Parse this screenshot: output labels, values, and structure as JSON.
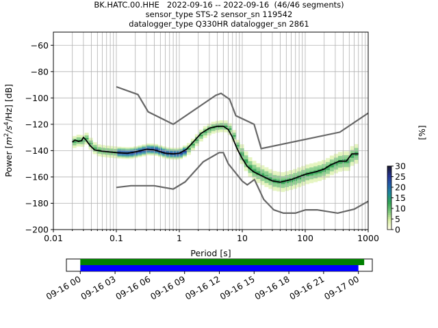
{
  "title_lines": [
    "BK.HATC.00.HHE   2022-09-16 -- 2022-09-16  (46/46 segments)",
    "sensor_type STS-2 sensor_sn 119542",
    "datalogger_type Q330HR datalogger_sn 2861"
  ],
  "chart_data": {
    "type": "heatmap",
    "xlabel": "Period [s]",
    "ylabel_parts": [
      "Power [",
      "m",
      "2",
      "/",
      "s",
      "4",
      "/Hz] [dB]"
    ],
    "xscale": "log",
    "xlim": [
      0.01,
      1000
    ],
    "ylim": [
      -200,
      -50
    ],
    "x_ticks": [
      0.01,
      0.1,
      1,
      10,
      100,
      1000
    ],
    "x_tick_labels": [
      "0.01",
      "0.1",
      "1",
      "10",
      "100",
      "1000"
    ],
    "y_ticks": [
      -200,
      -180,
      -160,
      -140,
      -120,
      -100,
      -80,
      -60
    ],
    "y_tick_labels": [
      "−200",
      "−180",
      "−160",
      "−140",
      "−120",
      "−100",
      "−80",
      "−60"
    ],
    "grid": true,
    "colorbar": {
      "label": "[%]",
      "range": [
        0,
        30
      ],
      "ticks": [
        0,
        5,
        10,
        15,
        20,
        25,
        30
      ],
      "tick_labels": [
        "0",
        "5",
        "10",
        "15",
        "20",
        "25",
        "30"
      ],
      "colors": [
        "#ffffe5",
        "#d9f0a3",
        "#78c679",
        "#31a354",
        "#1d8a99",
        "#225ea8",
        "#253494",
        "#1a1a3a"
      ]
    },
    "noise_models": {
      "color": "#666666",
      "high": [
        [
          0.1,
          -91.5
        ],
        [
          0.22,
          -97.4
        ],
        [
          0.32,
          -110.5
        ],
        [
          0.8,
          -120
        ],
        [
          3.8,
          -98
        ],
        [
          4.6,
          -96.5
        ],
        [
          6.3,
          -101
        ],
        [
          7.9,
          -113.5
        ],
        [
          15.4,
          -120
        ],
        [
          20,
          -138.5
        ],
        [
          354.8,
          -126
        ],
        [
          1000,
          -111.5
        ]
      ],
      "low": [
        [
          0.1,
          -168
        ],
        [
          0.17,
          -166.7
        ],
        [
          0.4,
          -166.7
        ],
        [
          0.8,
          -169.2
        ],
        [
          1.24,
          -163.7
        ],
        [
          2.4,
          -148.5
        ],
        [
          4.3,
          -141.5
        ],
        [
          5,
          -141.5
        ],
        [
          6,
          -150
        ],
        [
          10,
          -163.2
        ],
        [
          12,
          -166
        ],
        [
          15.6,
          -162
        ],
        [
          21.9,
          -177
        ],
        [
          31.6,
          -185
        ],
        [
          45,
          -187.5
        ],
        [
          70,
          -187.5
        ],
        [
          101,
          -185
        ],
        [
          154,
          -185
        ],
        [
          328,
          -187.5
        ],
        [
          600,
          -184.5
        ],
        [
          1000,
          -178.5
        ]
      ]
    },
    "mode_line": {
      "color": "#000000",
      "points": [
        [
          0.02,
          -133.5
        ],
        [
          0.022,
          -132
        ],
        [
          0.025,
          -133
        ],
        [
          0.028,
          -132.5
        ],
        [
          0.03,
          -130
        ],
        [
          0.033,
          -132
        ],
        [
          0.038,
          -136
        ],
        [
          0.045,
          -139.5
        ],
        [
          0.06,
          -140.5
        ],
        [
          0.1,
          -141.5
        ],
        [
          0.15,
          -142
        ],
        [
          0.2,
          -141
        ],
        [
          0.3,
          -139
        ],
        [
          0.4,
          -139.5
        ],
        [
          0.6,
          -142
        ],
        [
          0.8,
          -142.5
        ],
        [
          1,
          -142
        ],
        [
          1.3,
          -139
        ],
        [
          1.7,
          -133
        ],
        [
          2.2,
          -127
        ],
        [
          3,
          -123
        ],
        [
          4,
          -121.5
        ],
        [
          5,
          -121.5
        ],
        [
          6,
          -124
        ],
        [
          7,
          -130
        ],
        [
          8,
          -137
        ],
        [
          9,
          -142
        ],
        [
          10,
          -146
        ],
        [
          12,
          -152
        ],
        [
          15,
          -156
        ],
        [
          20,
          -159
        ],
        [
          30,
          -163
        ],
        [
          40,
          -164
        ],
        [
          60,
          -162
        ],
        [
          100,
          -158
        ],
        [
          150,
          -156
        ],
        [
          200,
          -154
        ],
        [
          250,
          -151
        ],
        [
          350,
          -148
        ],
        [
          450,
          -148
        ],
        [
          550,
          -142.5
        ],
        [
          700,
          -142.5
        ]
      ]
    },
    "coverage": {
      "tick_labels": [
        "09-16 00",
        "09-16 03",
        "09-16 06",
        "09-16 09",
        "09-16 12",
        "09-16 15",
        "09-16 18",
        "09-16 21",
        "09-17 00"
      ],
      "tick_hours": [
        0,
        3,
        6,
        9,
        12,
        15,
        18,
        21,
        24
      ],
      "range_hours": [
        -1.2,
        25.2
      ],
      "bars": [
        {
          "color": "#008000",
          "start_hours": 0,
          "end_hours": 24.5
        },
        {
          "color": "#0000ff",
          "start_hours": 0,
          "end_hours": 24
        }
      ]
    }
  }
}
